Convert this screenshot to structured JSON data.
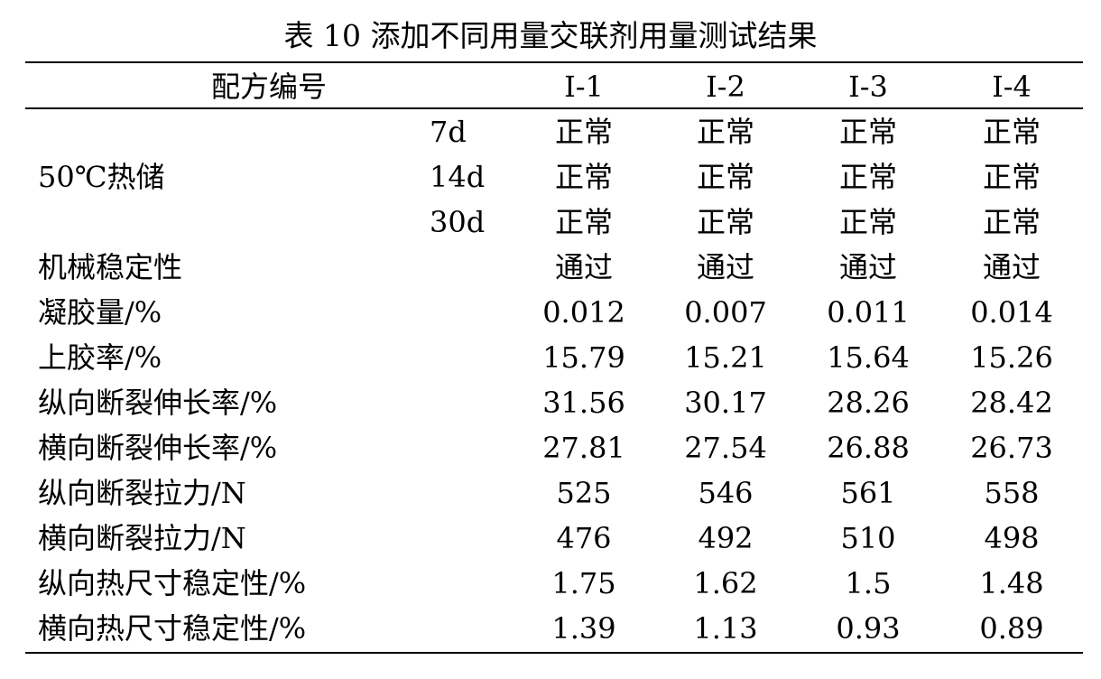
{
  "caption": "表 10  添加不同用量交联剂用量测试结果",
  "header": {
    "label": "配方编号",
    "columns": [
      "I-1",
      "I-2",
      "I-3",
      "I-4"
    ]
  },
  "storage": {
    "label": "50℃热储",
    "rows": [
      {
        "period": "7d",
        "values": [
          "正常",
          "正常",
          "正常",
          "正常"
        ]
      },
      {
        "period": "14d",
        "values": [
          "正常",
          "正常",
          "正常",
          "正常"
        ]
      },
      {
        "period": "30d",
        "values": [
          "正常",
          "正常",
          "正常",
          "正常"
        ]
      }
    ]
  },
  "rows": [
    {
      "label": "机械稳定性",
      "values": [
        "通过",
        "通过",
        "通过",
        "通过"
      ]
    },
    {
      "label": "凝胶量/%",
      "values": [
        "0.012",
        "0.007",
        "0.011",
        "0.014"
      ]
    },
    {
      "label": "上胶率/%",
      "values": [
        "15.79",
        "15.21",
        "15.64",
        "15.26"
      ]
    },
    {
      "label": "纵向断裂伸长率/%",
      "values": [
        "31.56",
        "30.17",
        "28.26",
        "28.42"
      ]
    },
    {
      "label": "横向断裂伸长率/%",
      "values": [
        "27.81",
        "27.54",
        "26.88",
        "26.73"
      ]
    },
    {
      "label": "纵向断裂拉力/N",
      "values": [
        "525",
        "546",
        "561",
        "558"
      ]
    },
    {
      "label": "横向断裂拉力/N",
      "values": [
        "476",
        "492",
        "510",
        "498"
      ]
    },
    {
      "label": "纵向热尺寸稳定性/%",
      "values": [
        "1.75",
        "1.62",
        "1.5",
        "1.48"
      ]
    },
    {
      "label": "横向热尺寸稳定性/%",
      "values": [
        "1.39",
        "1.13",
        "0.93",
        "0.89"
      ]
    }
  ]
}
